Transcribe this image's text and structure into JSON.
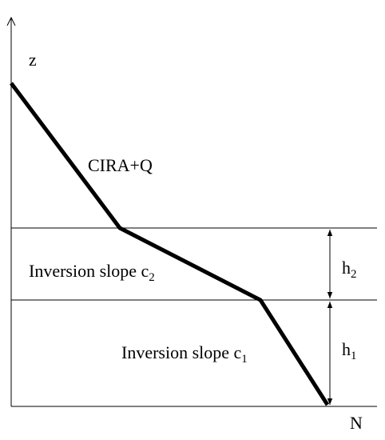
{
  "axes": {
    "y_label": "z",
    "x_label": "N"
  },
  "labels": {
    "upper": "CIRA+Q",
    "middle": {
      "text": "Inversion slope c",
      "subscript": "2"
    },
    "lower": {
      "text": "Inversion slope c",
      "subscript": "1"
    },
    "h_upper": {
      "text": "h",
      "subscript": "2"
    },
    "h_lower": {
      "text": "h",
      "subscript": "1"
    }
  }
}
